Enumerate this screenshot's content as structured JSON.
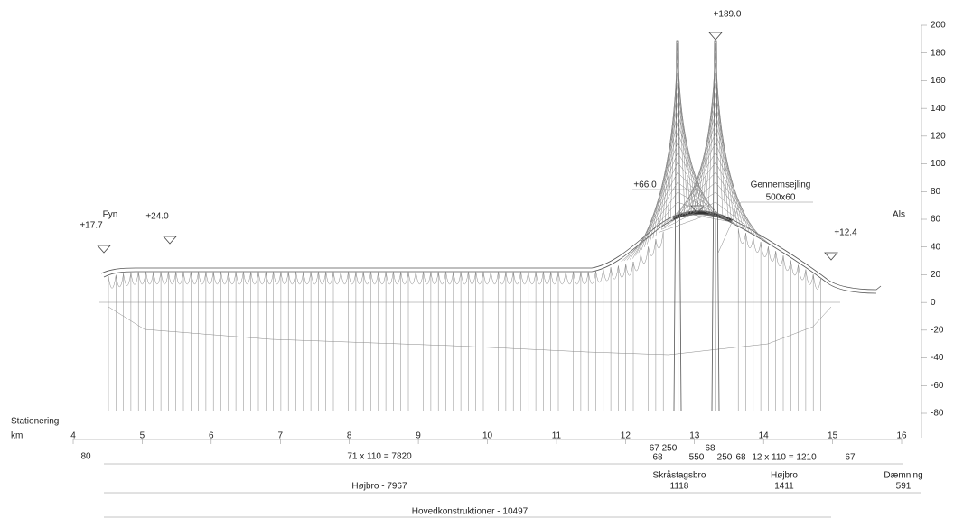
{
  "levels": {
    "tower_top": "+189.0",
    "navigation": "+66.0",
    "fyn_end": "+17.7",
    "deck": "+24.0",
    "als_end": "+12.4"
  },
  "clearance": {
    "title": "Gennemsejling",
    "size": "500x60"
  },
  "sides": {
    "west": "Fyn",
    "east": "Als"
  },
  "elevation_axis": {
    "ticks": [
      200,
      180,
      160,
      140,
      120,
      100,
      80,
      60,
      40,
      20,
      0,
      -20,
      -40,
      -60,
      -80
    ]
  },
  "station_axis": {
    "title": "Stationering",
    "unit": "km",
    "ticks": [
      4,
      5,
      6,
      7,
      8,
      9,
      10,
      11,
      12,
      13,
      14,
      15,
      16
    ]
  },
  "spans": {
    "row1": [
      "80",
      "71 x 110 = 7820",
      "67 250",
      "68",
      "550",
      "250",
      "68",
      "68",
      "12 x 110 = 1210",
      "67"
    ],
    "row2": {
      "cable_stayed": "Skråstagsbro",
      "cable_stayed_length": "1118",
      "high_bridge": "Højbro",
      "high_bridge_length": "1411",
      "embankment": "Dæmning",
      "embankment_length": "591",
      "west_high_bridge": "Højbro - 7967"
    },
    "row3": "Hovedkonstruktioner - 10497"
  }
}
